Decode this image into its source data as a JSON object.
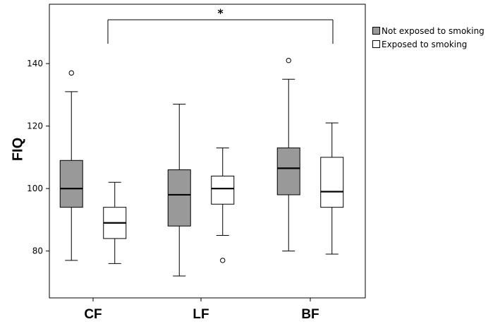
{
  "chart_data": {
    "type": "boxplot",
    "title": "",
    "xlabel": "",
    "ylabel": "FIQ",
    "ylim": [
      65,
      159
    ],
    "yticks": [
      80,
      100,
      120,
      140
    ],
    "categories": [
      "CF",
      "LF",
      "BF"
    ],
    "legend_position": "right, outside plot",
    "grid": false,
    "series": [
      {
        "name": "Not exposed to smoking",
        "color": "#999999",
        "boxes": [
          {
            "category": "CF",
            "min": 77,
            "q1": 94,
            "median": 100,
            "q3": 109,
            "max": 131,
            "outliers": [
              137
            ]
          },
          {
            "category": "LF",
            "min": 72,
            "q1": 88,
            "median": 98,
            "q3": 106,
            "max": 127,
            "outliers": []
          },
          {
            "category": "BF",
            "min": 80,
            "q1": 98,
            "median": 106.5,
            "q3": 113,
            "max": 135,
            "outliers": [
              141
            ]
          }
        ]
      },
      {
        "name": "Exposed to smoking",
        "color": "#ffffff",
        "boxes": [
          {
            "category": "CF",
            "min": 76,
            "q1": 84,
            "median": 89,
            "q3": 94,
            "max": 102,
            "outliers": []
          },
          {
            "category": "LF",
            "min": 85,
            "q1": 95,
            "median": 100,
            "q3": 104,
            "max": 113,
            "outliers": [
              77
            ]
          },
          {
            "category": "BF",
            "min": 79,
            "q1": 94,
            "median": 99,
            "q3": 110,
            "max": 121,
            "outliers": []
          }
        ]
      }
    ],
    "annotations": [
      {
        "text": "*",
        "from": "CF",
        "to": "BF",
        "type": "significance-bracket"
      }
    ]
  }
}
